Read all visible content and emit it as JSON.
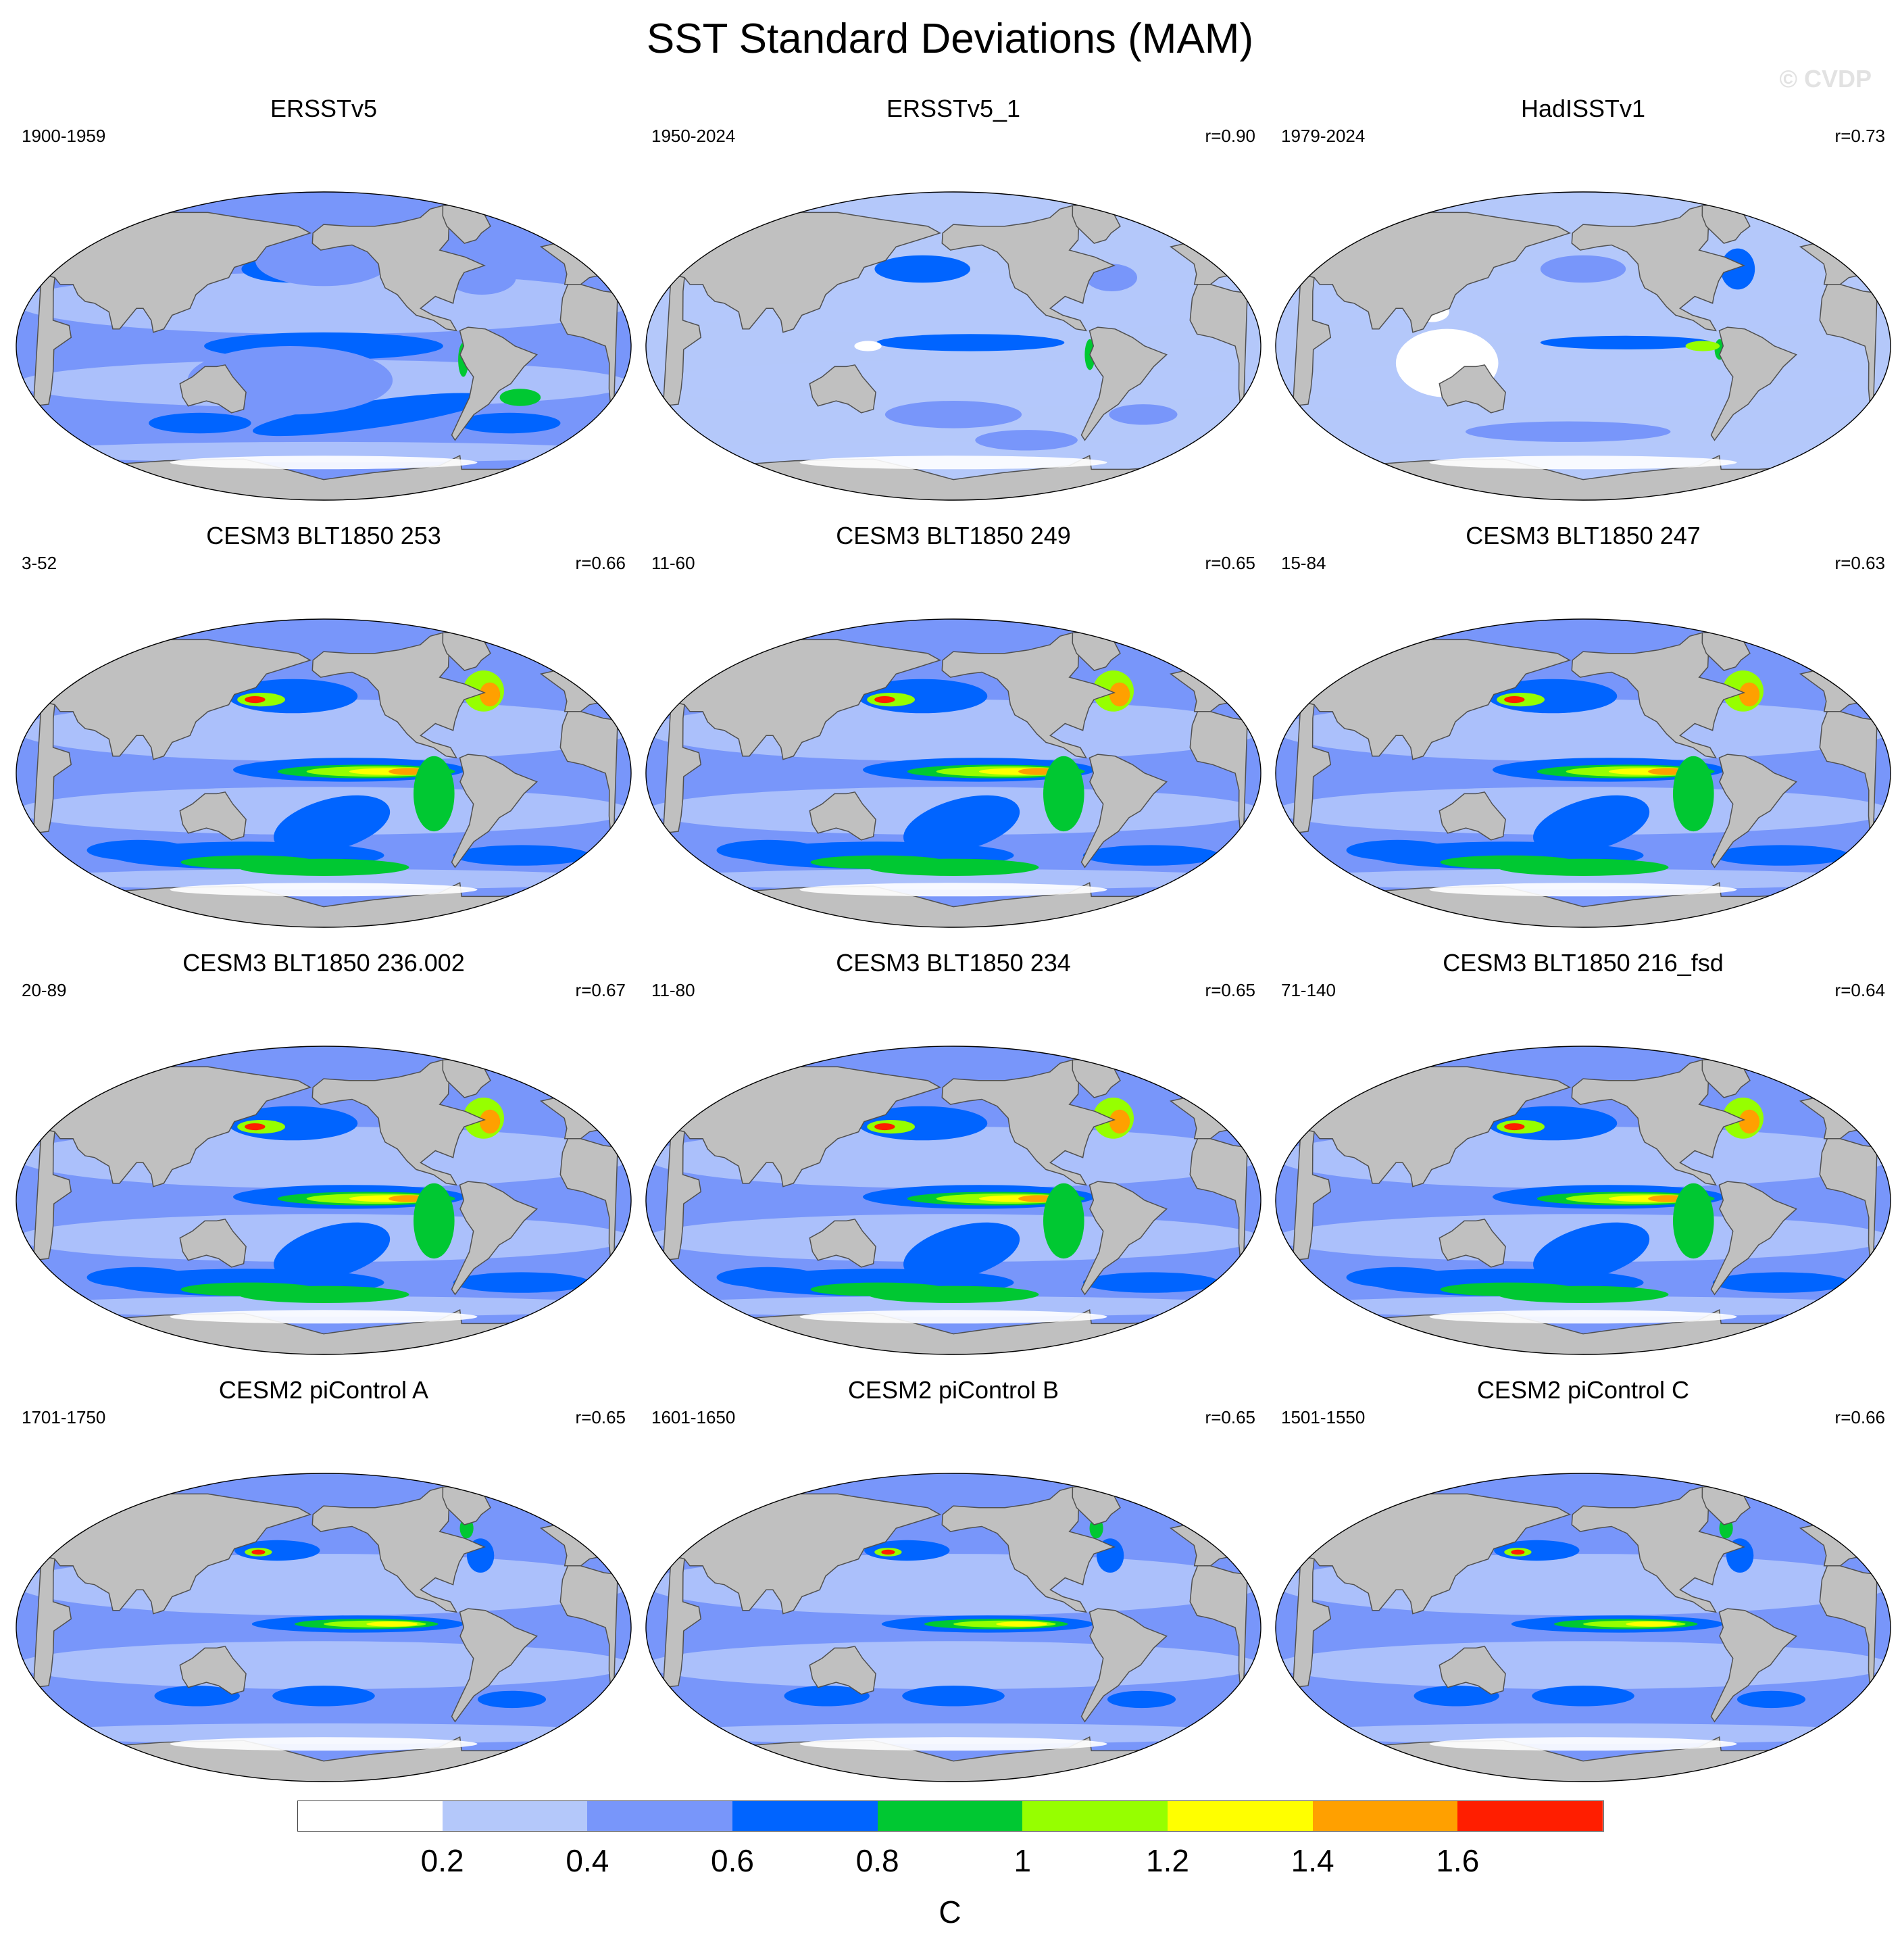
{
  "title": "SST Standard Deviations (MAM)",
  "watermark": "© CVDP",
  "panels": [
    {
      "title": "ERSSTv5",
      "period": "1900-1959",
      "r": "",
      "style": "obs1"
    },
    {
      "title": "ERSSTv5_1",
      "period": "1950-2024",
      "r": "r=0.90",
      "style": "obs2"
    },
    {
      "title": "HadISSTv1",
      "period": "1979-2024",
      "r": "r=0.73",
      "style": "obs3"
    },
    {
      "title": "CESM3 BLT1850 253",
      "period": "3-52",
      "r": "r=0.66",
      "style": "model"
    },
    {
      "title": "CESM3 BLT1850 249",
      "period": "11-60",
      "r": "r=0.65",
      "style": "model"
    },
    {
      "title": "CESM3 BLT1850 247",
      "period": "15-84",
      "r": "r=0.63",
      "style": "model"
    },
    {
      "title": "CESM3 BLT1850 236.002",
      "period": "20-89",
      "r": "r=0.67",
      "style": "model"
    },
    {
      "title": "CESM3 BLT1850 234",
      "period": "11-80",
      "r": "r=0.65",
      "style": "model"
    },
    {
      "title": "CESM3 BLT1850 216_fsd",
      "period": "71-140",
      "r": "r=0.64",
      "style": "model"
    },
    {
      "title": "CESM2 piControl A",
      "period": "1701-1750",
      "r": "r=0.65",
      "style": "pic"
    },
    {
      "title": "CESM2 piControl B",
      "period": "1601-1650",
      "r": "r=0.65",
      "style": "pic"
    },
    {
      "title": "CESM2 piControl C",
      "period": "1501-1550",
      "r": "r=0.66",
      "style": "pic"
    }
  ],
  "colorbar": {
    "colors": [
      "#ffffff",
      "#b4c8fa",
      "#7896fa",
      "#0064ff",
      "#00c832",
      "#96ff00",
      "#ffff00",
      "#ffa000",
      "#ff1e00"
    ],
    "ticks": [
      "0.2",
      "0.4",
      "0.6",
      "0.8",
      "1",
      "1.2",
      "1.4",
      "1.6"
    ],
    "unit": "C"
  },
  "colors": {
    "land": "#c0c0c0",
    "coast": "#505050"
  }
}
